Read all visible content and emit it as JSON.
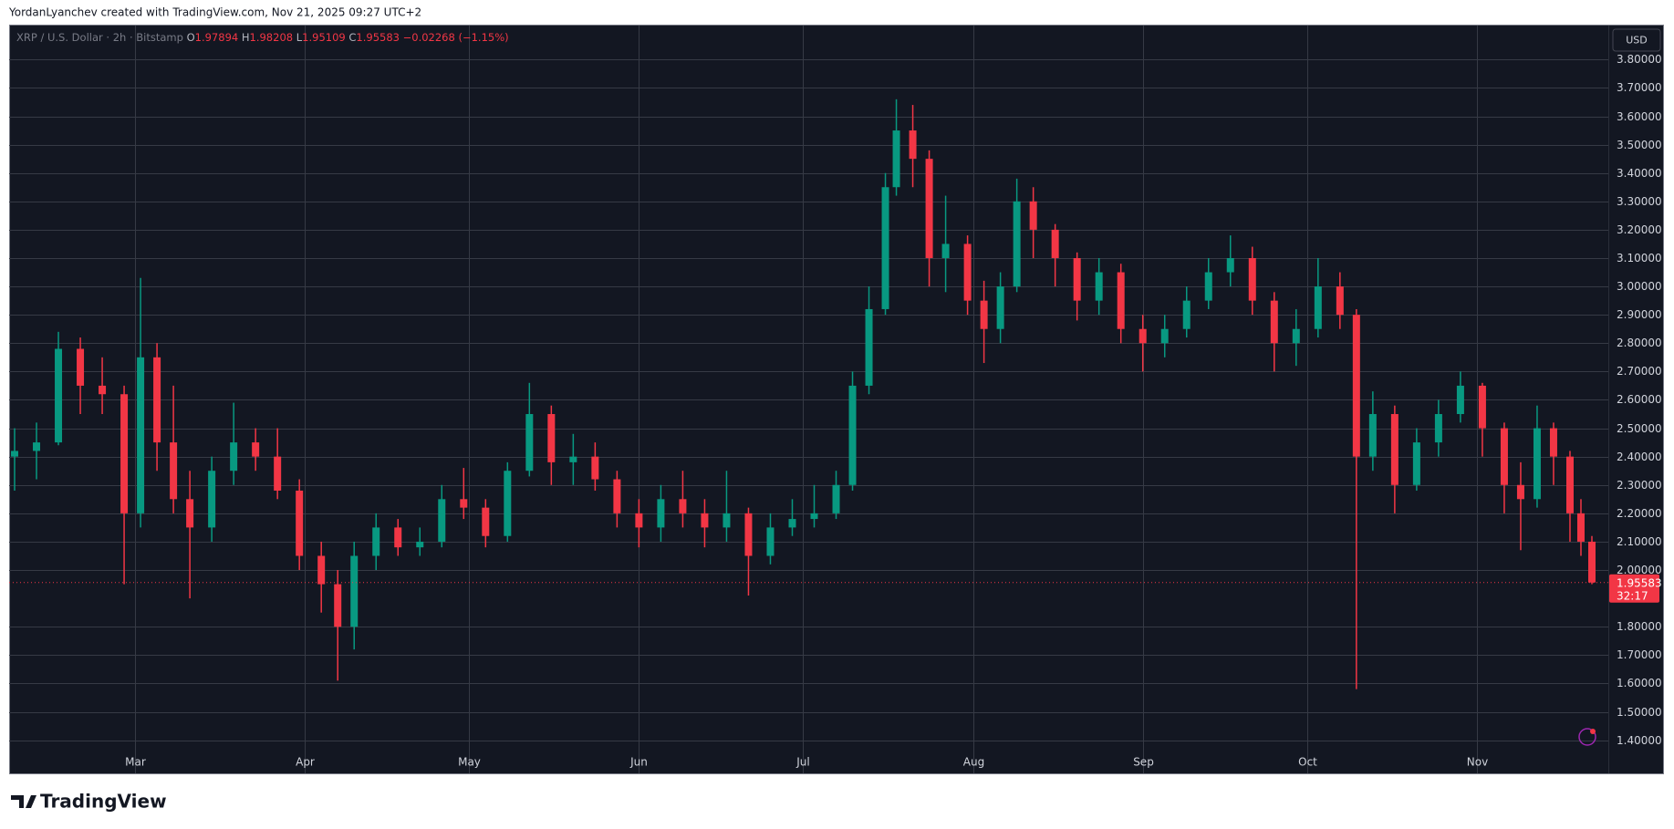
{
  "header": {
    "credit": "YordanLyanchev created with TradingView.com, Nov 21, 2025 09:27 UTC+2",
    "logo": "TradingView"
  },
  "legend": {
    "symbol": "XRP / U.S. Dollar · 2h · Bitstamp",
    "open_key": "O",
    "open": "1.97894",
    "high_key": "H",
    "high": "1.98208",
    "low_key": "L",
    "low": "1.95109",
    "close_key": "C",
    "close": "1.95583",
    "change": "−0.02268 (−1.15%)"
  },
  "currency": "USD",
  "countdown": "32:17",
  "chart_data": {
    "type": "candlestick",
    "up_color": "#089981",
    "down_color": "#f23645",
    "grid": true,
    "x": [
      -22,
      -18,
      -14,
      -10,
      -6,
      -2,
      1,
      4,
      7,
      10,
      14,
      18,
      22,
      26,
      30,
      34,
      37,
      40,
      44,
      48,
      52,
      56,
      60,
      64,
      68,
      72,
      76,
      80,
      84,
      88,
      92,
      96,
      100,
      104,
      108,
      112,
      116,
      120,
      124,
      128,
      131,
      134,
      137,
      139,
      142,
      145,
      148,
      152,
      155,
      158,
      161,
      164,
      168,
      172,
      176,
      180,
      184,
      188,
      192,
      196,
      200,
      204,
      208,
      212,
      216,
      220,
      223,
      226,
      230,
      234,
      238,
      242,
      246,
      250,
      253,
      256,
      259,
      262,
      264,
      266
    ],
    "open": [
      2.4,
      2.42,
      2.45,
      2.78,
      2.65,
      2.62,
      2.2,
      2.75,
      2.45,
      2.25,
      2.15,
      2.35,
      2.45,
      2.4,
      2.28,
      2.05,
      1.95,
      1.8,
      2.05,
      2.15,
      2.08,
      2.1,
      2.25,
      2.22,
      2.12,
      2.35,
      2.55,
      2.38,
      2.4,
      2.32,
      2.2,
      2.15,
      2.25,
      2.2,
      2.15,
      2.2,
      2.05,
      2.15,
      2.18,
      2.2,
      2.3,
      2.65,
      2.92,
      3.35,
      3.55,
      3.45,
      3.1,
      3.15,
      2.95,
      2.85,
      3.0,
      3.3,
      3.2,
      3.1,
      2.95,
      3.05,
      2.85,
      2.8,
      2.85,
      2.95,
      3.05,
      3.1,
      2.95,
      2.8,
      2.85,
      3.0,
      2.9,
      2.4,
      2.55,
      2.3,
      2.45,
      2.55,
      2.65,
      2.5,
      2.3,
      2.25,
      2.5,
      2.4,
      2.2,
      2.1
    ],
    "high": [
      2.5,
      2.52,
      2.84,
      2.82,
      2.75,
      2.65,
      3.03,
      2.8,
      2.65,
      2.35,
      2.4,
      2.59,
      2.5,
      2.5,
      2.32,
      2.1,
      2.0,
      2.1,
      2.2,
      2.18,
      2.15,
      2.3,
      2.36,
      2.25,
      2.38,
      2.66,
      2.58,
      2.48,
      2.45,
      2.35,
      2.25,
      2.3,
      2.35,
      2.25,
      2.35,
      2.22,
      2.2,
      2.25,
      2.3,
      2.35,
      2.7,
      3.0,
      3.4,
      3.66,
      3.64,
      3.48,
      3.32,
      3.18,
      3.02,
      3.05,
      3.38,
      3.35,
      3.22,
      3.12,
      3.1,
      3.08,
      2.9,
      2.9,
      3.0,
      3.1,
      3.18,
      3.14,
      2.98,
      2.92,
      3.1,
      3.05,
      2.92,
      2.63,
      2.58,
      2.5,
      2.6,
      2.7,
      2.66,
      2.52,
      2.38,
      2.58,
      2.52,
      2.42,
      2.25,
      2.12
    ],
    "low": [
      2.28,
      2.32,
      2.44,
      2.55,
      2.55,
      1.95,
      2.15,
      2.35,
      2.2,
      1.9,
      2.1,
      2.3,
      2.35,
      2.25,
      2.0,
      1.85,
      1.61,
      1.72,
      2.0,
      2.05,
      2.05,
      2.08,
      2.18,
      2.08,
      2.1,
      2.33,
      2.3,
      2.3,
      2.28,
      2.15,
      2.08,
      2.1,
      2.15,
      2.08,
      2.1,
      1.91,
      2.02,
      2.12,
      2.15,
      2.18,
      2.28,
      2.62,
      2.9,
      3.32,
      3.35,
      3.0,
      2.98,
      2.9,
      2.73,
      2.8,
      2.98,
      3.1,
      3.0,
      2.88,
      2.9,
      2.8,
      2.7,
      2.75,
      2.82,
      2.92,
      3.0,
      2.9,
      2.7,
      2.72,
      2.82,
      2.85,
      1.58,
      2.35,
      2.2,
      2.28,
      2.4,
      2.52,
      2.4,
      2.2,
      2.07,
      2.22,
      2.3,
      2.1,
      2.05,
      1.95
    ],
    "close": [
      2.42,
      2.45,
      2.78,
      2.65,
      2.62,
      2.2,
      2.75,
      2.45,
      2.25,
      2.15,
      2.35,
      2.45,
      2.4,
      2.28,
      2.05,
      1.95,
      1.8,
      2.05,
      2.15,
      2.08,
      2.1,
      2.25,
      2.22,
      2.12,
      2.35,
      2.55,
      2.38,
      2.4,
      2.32,
      2.2,
      2.15,
      2.25,
      2.2,
      2.15,
      2.2,
      2.05,
      2.15,
      2.18,
      2.2,
      2.3,
      2.65,
      2.92,
      3.35,
      3.55,
      3.45,
      3.1,
      3.15,
      2.95,
      2.85,
      3.0,
      3.3,
      3.2,
      3.1,
      2.95,
      3.05,
      2.85,
      2.8,
      2.85,
      2.95,
      3.05,
      3.1,
      2.95,
      2.8,
      2.85,
      3.0,
      2.9,
      2.4,
      2.55,
      2.3,
      2.45,
      2.55,
      2.65,
      2.5,
      2.3,
      2.25,
      2.5,
      2.4,
      2.2,
      2.1,
      1.956
    ],
    "xlim": [
      -23,
      269
    ],
    "xticks": [
      {
        "value": 0,
        "label": "Mar"
      },
      {
        "value": 31,
        "label": "Apr"
      },
      {
        "value": 61,
        "label": "May"
      },
      {
        "value": 92,
        "label": "Jun"
      },
      {
        "value": 122,
        "label": "Jul"
      },
      {
        "value": 153,
        "label": "Aug"
      },
      {
        "value": 184,
        "label": "Sep"
      },
      {
        "value": 214,
        "label": "Oct"
      },
      {
        "value": 245,
        "label": "Nov"
      }
    ],
    "ylim": [
      1.283,
      3.92
    ],
    "yticks": [
      {
        "value": 1.4,
        "label": "1.40000"
      },
      {
        "value": 1.5,
        "label": "1.50000"
      },
      {
        "value": 1.6,
        "label": "1.60000"
      },
      {
        "value": 1.7,
        "label": "1.70000"
      },
      {
        "value": 1.8,
        "label": "1.80000"
      },
      {
        "value": 2.0,
        "label": "2.00000"
      },
      {
        "value": 2.1,
        "label": "2.10000"
      },
      {
        "value": 2.2,
        "label": "2.20000"
      },
      {
        "value": 2.3,
        "label": "2.30000"
      },
      {
        "value": 2.4,
        "label": "2.40000"
      },
      {
        "value": 2.5,
        "label": "2.50000"
      },
      {
        "value": 2.6,
        "label": "2.60000"
      },
      {
        "value": 2.7,
        "label": "2.70000"
      },
      {
        "value": 2.8,
        "label": "2.80000"
      },
      {
        "value": 2.9,
        "label": "2.90000"
      },
      {
        "value": 3.0,
        "label": "3.00000"
      },
      {
        "value": 3.1,
        "label": "3.10000"
      },
      {
        "value": 3.2,
        "label": "3.20000"
      },
      {
        "value": 3.3,
        "label": "3.30000"
      },
      {
        "value": 3.4,
        "label": "3.40000"
      },
      {
        "value": 3.5,
        "label": "3.50000"
      },
      {
        "value": 3.6,
        "label": "3.60000"
      },
      {
        "value": 3.7,
        "label": "3.70000"
      },
      {
        "value": 3.8,
        "label": "3.80000"
      }
    ],
    "price_line": {
      "value": 1.95583,
      "label": "1.95583"
    }
  }
}
